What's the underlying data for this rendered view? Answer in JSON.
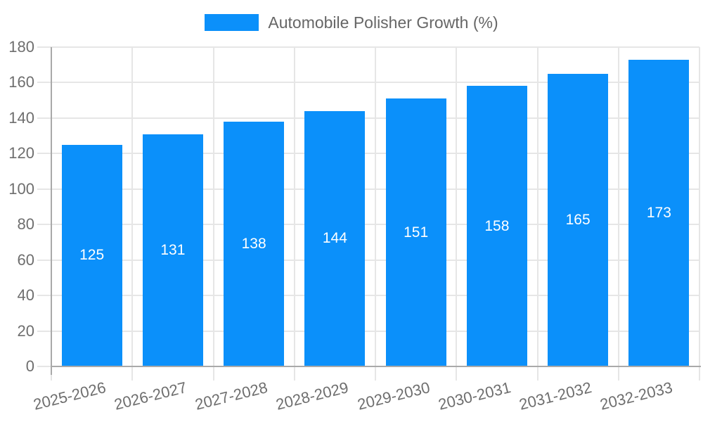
{
  "legend": {
    "label": "Automobile Polisher Growth (%)"
  },
  "colors": {
    "bar": "#0b90fa",
    "grid_line": "#e6e6e6",
    "axis_line": "#a9a9a9",
    "tick_label": "#6e6e6e",
    "legend_text": "#666666",
    "value_label": "#ffffff",
    "background": "#ffffff"
  },
  "y_axis": {
    "tick_labels": [
      "0",
      "20",
      "40",
      "60",
      "80",
      "100",
      "120",
      "140",
      "160",
      "180"
    ]
  },
  "chart_data": {
    "type": "bar",
    "title": "Automobile Polisher Growth (%)",
    "series_name": "Automobile Polisher Growth (%)",
    "categories": [
      "2025-2026",
      "2026-2027",
      "2027-2028",
      "2028-2029",
      "2029-2030",
      "2030-2031",
      "2031-2032",
      "2032-2033"
    ],
    "values": [
      125,
      131,
      138,
      144,
      151,
      158,
      165,
      173
    ],
    "xlabel": "",
    "ylabel": "",
    "ylim": [
      0,
      180
    ],
    "ytick_step": 20,
    "grid": true,
    "legend_position": "top",
    "value_label_position": "inside-center",
    "x_label_rotation_deg": -14,
    "bar_color": "#0b90fa"
  }
}
